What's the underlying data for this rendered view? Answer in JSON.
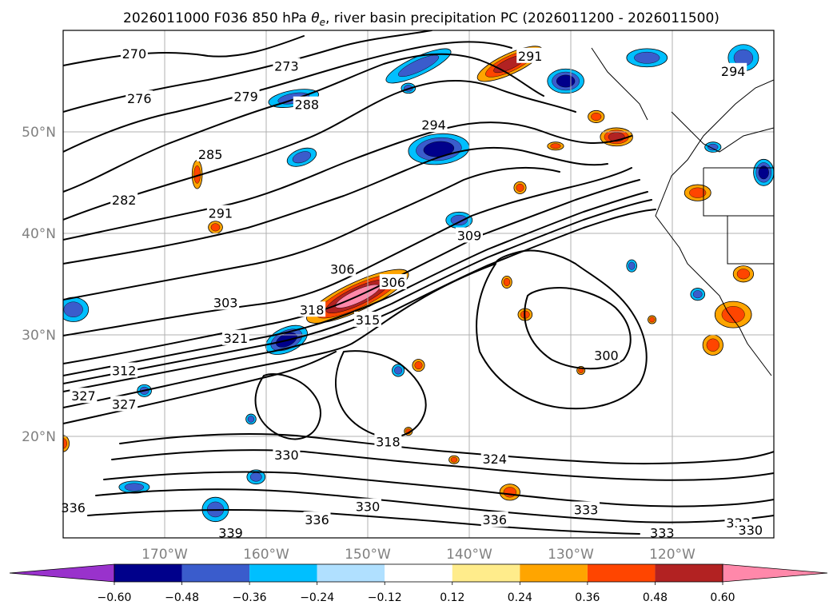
{
  "chart_data": {
    "type": "contour-map",
    "title": "2026011000 F036 850 hPa θe, river basin precipitation PC (2026011200 - 2026011500)",
    "title_parts": {
      "prefix": "2026011000 F036 850 hPa ",
      "symbol_base": "θ",
      "symbol_sub": "e",
      "suffix": ", river basin precipitation PC (2026011200 - 2026011500)"
    },
    "xlim": [
      -180,
      -110
    ],
    "ylim": [
      10,
      60
    ],
    "x_ticks": [
      {
        "value": -170,
        "label": "170°W"
      },
      {
        "value": -160,
        "label": "160°W"
      },
      {
        "value": -150,
        "label": "150°W"
      },
      {
        "value": -140,
        "label": "140°W"
      },
      {
        "value": -130,
        "label": "130°W"
      },
      {
        "value": -120,
        "label": "120°W"
      }
    ],
    "y_ticks": [
      {
        "value": 50,
        "label": "50°N"
      },
      {
        "value": 40,
        "label": "40°N"
      },
      {
        "value": 30,
        "label": "30°N"
      },
      {
        "value": 20,
        "label": "20°N"
      }
    ],
    "contour_labels": [
      {
        "text": "270",
        "lon": -173,
        "lat": 57.7
      },
      {
        "text": "276",
        "lon": -172.5,
        "lat": 53.3
      },
      {
        "text": "273",
        "lon": -158,
        "lat": 56.5
      },
      {
        "text": "279",
        "lon": -162,
        "lat": 53.5
      },
      {
        "text": "288",
        "lon": -156,
        "lat": 52.7
      },
      {
        "text": "294",
        "lon": -143.5,
        "lat": 50.7
      },
      {
        "text": "291",
        "lon": -134,
        "lat": 57.5
      },
      {
        "text": "294",
        "lon": -114,
        "lat": 56
      },
      {
        "text": "285",
        "lon": -165.5,
        "lat": 47.8
      },
      {
        "text": "282",
        "lon": -174,
        "lat": 43.3
      },
      {
        "text": "291",
        "lon": -164.5,
        "lat": 42
      },
      {
        "text": "309",
        "lon": -140,
        "lat": 39.8
      },
      {
        "text": "306",
        "lon": -152.5,
        "lat": 36.5
      },
      {
        "text": "306",
        "lon": -147.5,
        "lat": 35.2
      },
      {
        "text": "318",
        "lon": -155.5,
        "lat": 32.5
      },
      {
        "text": "303",
        "lon": -164,
        "lat": 33.2
      },
      {
        "text": "321",
        "lon": -163,
        "lat": 29.7
      },
      {
        "text": "315",
        "lon": -150,
        "lat": 31.5
      },
      {
        "text": "300",
        "lon": -126.5,
        "lat": 28
      },
      {
        "text": "312",
        "lon": -174,
        "lat": 26.5
      },
      {
        "text": "327",
        "lon": -178,
        "lat": 24
      },
      {
        "text": "327",
        "lon": -174,
        "lat": 23.2
      },
      {
        "text": "318",
        "lon": -148,
        "lat": 19.5
      },
      {
        "text": "330",
        "lon": -158,
        "lat": 18.2
      },
      {
        "text": "324",
        "lon": -137.5,
        "lat": 17.8
      },
      {
        "text": "336",
        "lon": -179,
        "lat": 13
      },
      {
        "text": "330",
        "lon": -150,
        "lat": 13.1
      },
      {
        "text": "333",
        "lon": -128.5,
        "lat": 12.8
      },
      {
        "text": "336",
        "lon": -155,
        "lat": 11.8
      },
      {
        "text": "336",
        "lon": -137.5,
        "lat": 11.8
      },
      {
        "text": "339",
        "lon": -163.5,
        "lat": 10.5
      },
      {
        "text": "333",
        "lon": -121,
        "lat": 10.5
      },
      {
        "text": "333",
        "lon": -113.5,
        "lat": 11.5
      },
      {
        "text": "330",
        "lon": -112.3,
        "lat": 10.8
      }
    ],
    "colorbar": {
      "levels": [
        -0.6,
        -0.48,
        -0.36,
        -0.24,
        -0.12,
        0.12,
        0.24,
        0.36,
        0.48,
        0.6
      ],
      "tick_labels": [
        "−0.60",
        "−0.48",
        "−0.36",
        "−0.24",
        "−0.12",
        "0.12",
        "0.24",
        "0.36",
        "0.48",
        "0.60"
      ],
      "colors": [
        "#9932cc",
        "#00008b",
        "#3a5ccc",
        "#00bfff",
        "#b0e0ff",
        "#ffffff",
        "#ffec8b",
        "#ffa500",
        "#ff4500",
        "#b22222",
        "#ff88aa"
      ],
      "extend": "both"
    },
    "precip_blobs": [
      {
        "lon": -151,
        "lat": 33.8,
        "rx": 5.5,
        "ry": 1.4,
        "rot": -25,
        "levels": [
          0.24,
          0.36,
          0.48,
          0.6
        ]
      },
      {
        "lon": -136,
        "lat": 56.7,
        "rx": 3.5,
        "ry": 1.0,
        "rot": -25,
        "levels": [
          0.24,
          0.36,
          0.48
        ]
      },
      {
        "lon": -125.5,
        "lat": 49.5,
        "rx": 1.6,
        "ry": 0.9,
        "rot": 0,
        "levels": [
          0.24,
          0.36,
          0.48
        ]
      },
      {
        "lon": -131.5,
        "lat": 48.6,
        "rx": 0.8,
        "ry": 0.4,
        "rot": 0,
        "levels": [
          0.24,
          0.36
        ]
      },
      {
        "lon": -165,
        "lat": 40.6,
        "rx": 0.7,
        "ry": 0.6,
        "rot": 0,
        "levels": [
          0.24,
          0.36
        ]
      },
      {
        "lon": -166.8,
        "lat": 45.8,
        "rx": 0.5,
        "ry": 1.4,
        "rot": 0,
        "levels": [
          0.24,
          0.36
        ]
      },
      {
        "lon": -114,
        "lat": 32,
        "rx": 1.8,
        "ry": 1.3,
        "rot": 0,
        "levels": [
          0.24,
          0.36
        ]
      },
      {
        "lon": -116,
        "lat": 29,
        "rx": 1.0,
        "ry": 1.0,
        "rot": 0,
        "levels": [
          0.24,
          0.36
        ]
      },
      {
        "lon": -113,
        "lat": 36,
        "rx": 1.0,
        "ry": 0.8,
        "rot": 0,
        "levels": [
          0.24,
          0.36
        ]
      },
      {
        "lon": -117.5,
        "lat": 44,
        "rx": 1.3,
        "ry": 0.8,
        "rot": 0,
        "levels": [
          0.24,
          0.36
        ]
      },
      {
        "lon": -127.5,
        "lat": 51.5,
        "rx": 0.8,
        "ry": 0.6,
        "rot": 0,
        "levels": [
          0.24,
          0.36
        ]
      },
      {
        "lon": -134.5,
        "lat": 32,
        "rx": 0.7,
        "ry": 0.6,
        "rot": 0,
        "levels": [
          0.24,
          0.36
        ]
      },
      {
        "lon": -141.5,
        "lat": 17.7,
        "rx": 0.5,
        "ry": 0.4,
        "rot": 0,
        "levels": [
          0.24,
          0.36
        ]
      },
      {
        "lon": -136,
        "lat": 14.5,
        "rx": 1.0,
        "ry": 0.8,
        "rot": 0,
        "levels": [
          0.24,
          0.36
        ]
      },
      {
        "lon": -145,
        "lat": 27,
        "rx": 0.6,
        "ry": 0.6,
        "rot": 0,
        "levels": [
          0.24,
          0.36
        ]
      },
      {
        "lon": -136.3,
        "lat": 35.2,
        "rx": 0.5,
        "ry": 0.6,
        "rot": 0,
        "levels": [
          0.24,
          0.36
        ]
      },
      {
        "lon": -135,
        "lat": 44.5,
        "rx": 0.6,
        "ry": 0.6,
        "rot": 0,
        "levels": [
          0.24,
          0.36
        ]
      },
      {
        "lon": -122,
        "lat": 31.5,
        "rx": 0.4,
        "ry": 0.4,
        "rot": 0,
        "levels": [
          0.24,
          0.36
        ]
      },
      {
        "lon": -129,
        "lat": 26.5,
        "rx": 0.4,
        "ry": 0.4,
        "rot": 0,
        "levels": [
          0.24,
          0.36
        ]
      },
      {
        "lon": -180,
        "lat": 19.3,
        "rx": 0.6,
        "ry": 0.8,
        "rot": 0,
        "levels": [
          0.24,
          0.36
        ]
      },
      {
        "lon": -146,
        "lat": 20.5,
        "rx": 0.4,
        "ry": 0.4,
        "rot": 0,
        "levels": [
          0.24,
          0.36
        ]
      },
      {
        "lon": -145,
        "lat": 56.5,
        "rx": 3.5,
        "ry": 0.9,
        "rot": -25,
        "levels": [
          -0.24,
          -0.36
        ]
      },
      {
        "lon": -143,
        "lat": 48.3,
        "rx": 3.0,
        "ry": 1.5,
        "rot": -5,
        "levels": [
          -0.24,
          -0.36,
          -0.48
        ]
      },
      {
        "lon": -157.3,
        "lat": 53.3,
        "rx": 2.5,
        "ry": 0.8,
        "rot": -10,
        "levels": [
          -0.24,
          -0.36
        ]
      },
      {
        "lon": -130.5,
        "lat": 55,
        "rx": 1.8,
        "ry": 1.2,
        "rot": 0,
        "levels": [
          -0.24,
          -0.36,
          -0.48
        ]
      },
      {
        "lon": -122.5,
        "lat": 57.3,
        "rx": 2.0,
        "ry": 0.9,
        "rot": 0,
        "levels": [
          -0.24,
          -0.36
        ]
      },
      {
        "lon": -113,
        "lat": 57.3,
        "rx": 1.5,
        "ry": 1.3,
        "rot": 0,
        "levels": [
          -0.24,
          -0.36
        ]
      },
      {
        "lon": -158,
        "lat": 29.5,
        "rx": 2.2,
        "ry": 1.2,
        "rot": -25,
        "levels": [
          -0.24,
          -0.36,
          -0.48
        ]
      },
      {
        "lon": -179,
        "lat": 32.5,
        "rx": 1.5,
        "ry": 1.2,
        "rot": 0,
        "levels": [
          -0.24,
          -0.36
        ]
      },
      {
        "lon": -173,
        "lat": 15,
        "rx": 1.5,
        "ry": 0.6,
        "rot": 0,
        "levels": [
          -0.24,
          -0.36
        ]
      },
      {
        "lon": -165,
        "lat": 12.8,
        "rx": 1.3,
        "ry": 1.2,
        "rot": 0,
        "levels": [
          -0.24,
          -0.36
        ]
      },
      {
        "lon": -161,
        "lat": 16,
        "rx": 0.9,
        "ry": 0.7,
        "rot": 0,
        "levels": [
          -0.24,
          -0.36
        ]
      },
      {
        "lon": -156.5,
        "lat": 47.5,
        "rx": 1.5,
        "ry": 0.8,
        "rot": -20,
        "levels": [
          -0.24,
          -0.36
        ]
      },
      {
        "lon": -141,
        "lat": 41.3,
        "rx": 1.3,
        "ry": 0.8,
        "rot": 0,
        "levels": [
          -0.24,
          -0.36
        ]
      },
      {
        "lon": -147,
        "lat": 26.5,
        "rx": 0.6,
        "ry": 0.6,
        "rot": 0,
        "levels": [
          -0.24,
          -0.36
        ]
      },
      {
        "lon": -117.5,
        "lat": 34,
        "rx": 0.7,
        "ry": 0.6,
        "rot": 0,
        "levels": [
          -0.24,
          -0.36
        ]
      },
      {
        "lon": -124,
        "lat": 36.8,
        "rx": 0.5,
        "ry": 0.6,
        "rot": 0,
        "levels": [
          -0.24,
          -0.36
        ]
      },
      {
        "lon": -172,
        "lat": 24.5,
        "rx": 0.7,
        "ry": 0.6,
        "rot": 0,
        "levels": [
          -0.24,
          -0.36
        ]
      },
      {
        "lon": -146,
        "lat": 54.3,
        "rx": 0.7,
        "ry": 0.5,
        "rot": 0,
        "levels": [
          -0.24,
          -0.36
        ]
      },
      {
        "lon": -161.5,
        "lat": 21.7,
        "rx": 0.5,
        "ry": 0.5,
        "rot": 0,
        "levels": [
          -0.24,
          -0.36
        ]
      },
      {
        "lon": -111,
        "lat": 46,
        "rx": 1.0,
        "ry": 1.3,
        "rot": 0,
        "levels": [
          -0.24,
          -0.36,
          -0.48
        ]
      },
      {
        "lon": -116,
        "lat": 48.5,
        "rx": 0.8,
        "ry": 0.5,
        "rot": 0,
        "levels": [
          -0.24,
          -0.36
        ]
      }
    ]
  }
}
